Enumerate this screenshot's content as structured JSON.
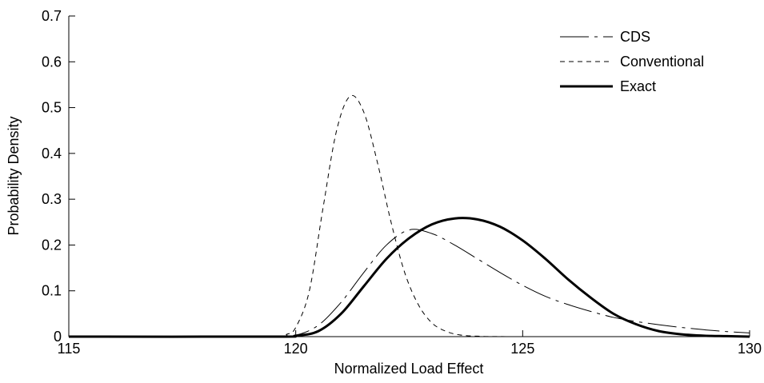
{
  "chart_data": {
    "type": "line",
    "title": "",
    "xlabel": "Normalized Load Effect",
    "ylabel": "Probability Density",
    "xlim": [
      115,
      130
    ],
    "ylim": [
      0,
      0.7
    ],
    "xticks": [
      115,
      120,
      125,
      130
    ],
    "xtick_labels": [
      "115",
      "120",
      "125",
      "130"
    ],
    "yticks": [
      0,
      0.1,
      0.2,
      0.3,
      0.4,
      0.5,
      0.6,
      0.7
    ],
    "ytick_labels": [
      "0",
      "0.1",
      "0.2",
      "0.3",
      "0.4",
      "0.5",
      "0.6",
      "0.7"
    ],
    "grid": false,
    "legend_position": "top-right",
    "series": [
      {
        "name": "CDS",
        "style": "dash-dot",
        "stroke_color": "#000000",
        "x": [
          115,
          119.5,
          120,
          120.5,
          121,
          121.5,
          122,
          122.5,
          123,
          123.5,
          124,
          124.5,
          125,
          125.5,
          126,
          126.5,
          127,
          127.5,
          128,
          128.5,
          129,
          129.5,
          130
        ],
        "y": [
          0,
          0,
          0.003,
          0.025,
          0.075,
          0.14,
          0.2,
          0.233,
          0.225,
          0.2,
          0.17,
          0.14,
          0.112,
          0.088,
          0.07,
          0.055,
          0.042,
          0.033,
          0.026,
          0.02,
          0.015,
          0.011,
          0.008
        ]
      },
      {
        "name": "Conventional",
        "style": "dashed",
        "stroke_color": "#000000",
        "x": [
          115,
          119.5,
          119.8,
          120,
          120.3,
          120.6,
          120.9,
          121.2,
          121.5,
          121.8,
          122.1,
          122.4,
          122.7,
          123,
          123.3,
          123.6,
          124,
          125,
          130
        ],
        "y": [
          0,
          0,
          0.005,
          0.02,
          0.1,
          0.28,
          0.45,
          0.525,
          0.49,
          0.38,
          0.25,
          0.14,
          0.07,
          0.03,
          0.012,
          0.004,
          0.001,
          0,
          0
        ]
      },
      {
        "name": "Exact",
        "style": "solid-thick",
        "stroke_color": "#000000",
        "x": [
          115,
          119.5,
          120,
          120.5,
          121,
          121.5,
          122,
          122.5,
          123,
          123.5,
          124,
          124.5,
          125,
          125.5,
          126,
          126.5,
          127,
          127.5,
          128,
          128.5,
          129,
          129.5,
          130
        ],
        "y": [
          0,
          0,
          0.002,
          0.012,
          0.05,
          0.11,
          0.17,
          0.215,
          0.245,
          0.258,
          0.256,
          0.24,
          0.21,
          0.17,
          0.125,
          0.085,
          0.05,
          0.027,
          0.012,
          0.005,
          0.002,
          0.001,
          0
        ]
      }
    ]
  }
}
